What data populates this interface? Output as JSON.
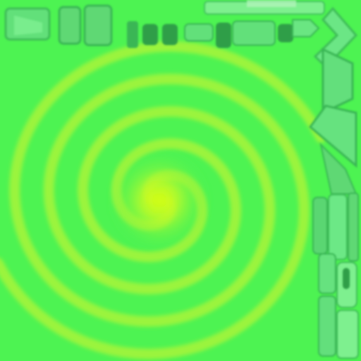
{
  "colors": {
    "background": "#4df352",
    "panel": "#5fe879",
    "panel_edge": "#3fcf5c",
    "panel_dark": "#3ab655",
    "spiral_core": "#c8ff1e",
    "spiral_arm": "#a8f43a"
  },
  "icons": {
    "top_bar": "hud-top-bar",
    "side_bar": "hud-side-bar",
    "spiral": "galaxy-spiral-icon",
    "chevron": "chevron-right-icon",
    "slot": "capsule-slot-icon"
  }
}
